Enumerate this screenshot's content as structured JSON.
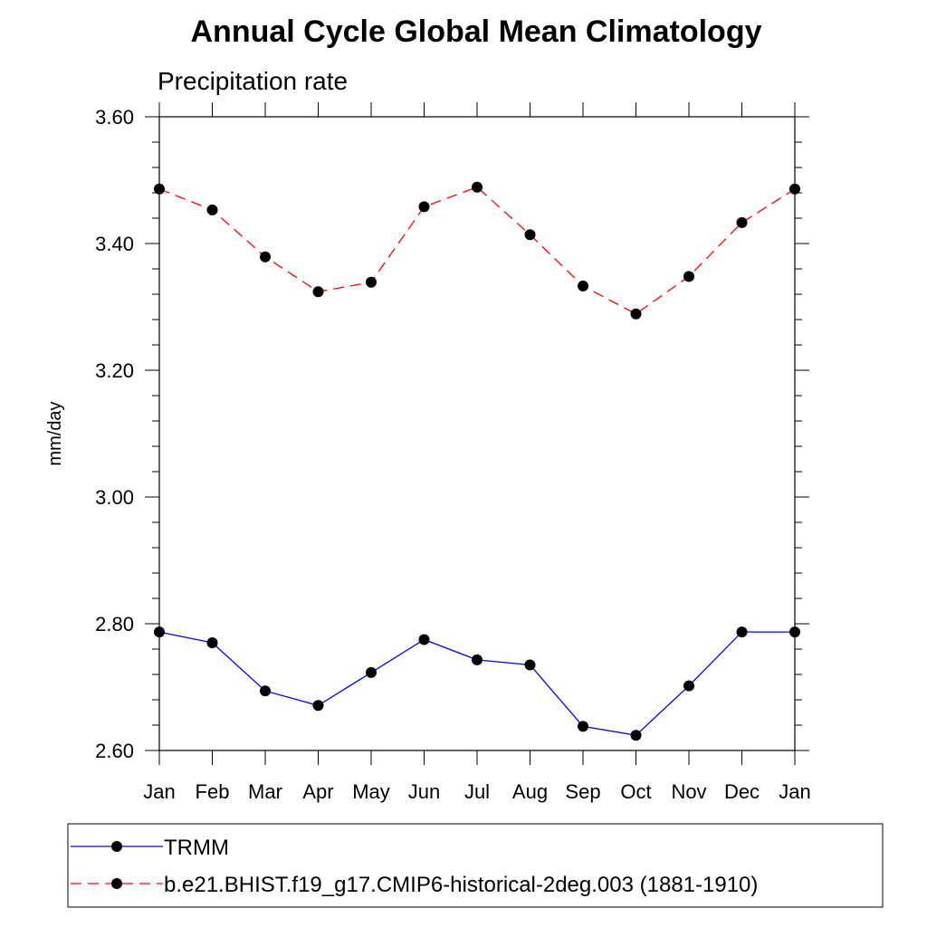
{
  "chart_data": {
    "type": "line",
    "title": "Annual Cycle Global Mean Climatology",
    "subtitle": "Precipitation rate",
    "ylabel": "mm/day",
    "xlabel": "",
    "categories": [
      "Jan",
      "Feb",
      "Mar",
      "Apr",
      "May",
      "Jun",
      "Jul",
      "Aug",
      "Sep",
      "Oct",
      "Nov",
      "Dec",
      "Jan"
    ],
    "ylim": [
      2.6,
      3.6
    ],
    "yticks": [
      "2.60",
      "2.80",
      "3.00",
      "3.20",
      "3.40",
      "3.60"
    ],
    "grid": false,
    "legend_position": "bottom",
    "series": [
      {
        "name": "TRMM",
        "color": "#0000ff",
        "line_style": "solid",
        "marker": "filled-circle",
        "values": [
          2.787,
          2.77,
          2.694,
          2.671,
          2.723,
          2.775,
          2.743,
          2.735,
          2.638,
          2.624,
          2.702,
          2.787,
          2.787
        ]
      },
      {
        "name": "b.e21.BHIST.f19_g17.CMIP6-historical-2deg.003 (1881-1910)",
        "color": "#ff0000",
        "line_style": "dashed",
        "marker": "filled-circle",
        "values": [
          3.486,
          3.453,
          3.379,
          3.324,
          3.339,
          3.458,
          3.489,
          3.414,
          3.333,
          3.289,
          3.348,
          3.433,
          3.486
        ]
      }
    ]
  }
}
